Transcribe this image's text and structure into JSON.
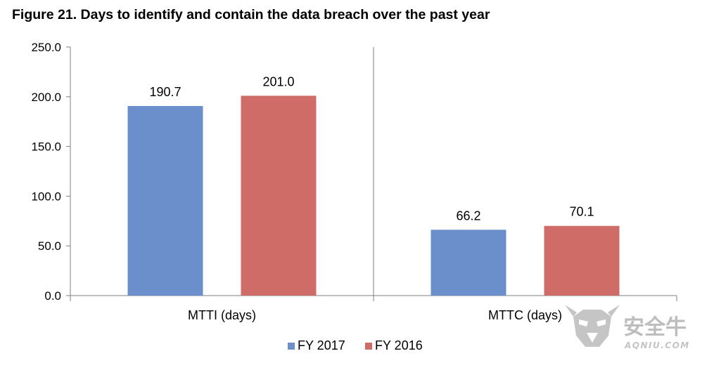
{
  "figure_title": "Figure 21. Days to identify and contain the data breach over the past year",
  "colors": {
    "fy2017": "#6a8fcb",
    "fy2016": "#d06c67",
    "axis": "#7f7f7f"
  },
  "chart_data": {
    "type": "bar",
    "title": "Figure 21. Days to identify and contain the data breach over the past year",
    "categories": [
      "MTTI (days)",
      "MTTC (days)"
    ],
    "series": [
      {
        "name": "FY 2017",
        "values": [
          190.7,
          66.2
        ],
        "value_labels": [
          "190.7",
          "66.2"
        ]
      },
      {
        "name": "FY 2016",
        "values": [
          201.0,
          70.1
        ],
        "value_labels": [
          "201.0",
          "70.1"
        ]
      }
    ],
    "yticks": [
      "0.0",
      "50.0",
      "100.0",
      "150.0",
      "200.0",
      "250.0"
    ],
    "ylim": [
      0,
      250
    ],
    "xlabel": "",
    "ylabel": "",
    "grid": false,
    "legend_position": "bottom-center"
  },
  "watermark": {
    "text_cn": "安全牛",
    "text_en": "AQNIU.COM",
    "icon": "bull-head-logo-icon"
  }
}
